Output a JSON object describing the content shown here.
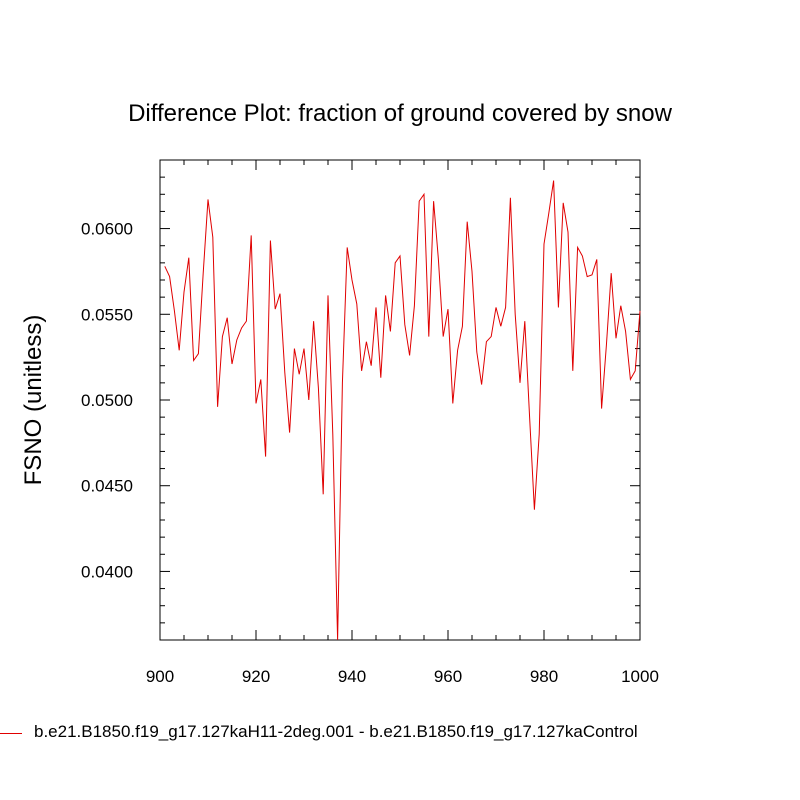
{
  "chart_data": {
    "type": "line",
    "title": "Difference Plot: fraction of ground covered by snow",
    "xlabel": "",
    "ylabel": "FSNO  (unitless)",
    "xlim": [
      900,
      1000
    ],
    "ylim": [
      0.036,
      0.064
    ],
    "xticks": [
      "900",
      "920",
      "940",
      "960",
      "980",
      "1000"
    ],
    "yticks": [
      "0.0400",
      "0.0450",
      "0.0500",
      "0.0550",
      "0.0600"
    ],
    "grid": false,
    "legend_placement": "bottom",
    "series": [
      {
        "name": "b.e21.B1850.f19_g17.127kaH11-2deg.001 - b.e21.B1850.f19_g17.127kaControl",
        "color": "#e00000",
        "x": [
          901,
          902,
          903,
          904,
          905,
          906,
          907,
          908,
          909,
          910,
          911,
          912,
          913,
          914,
          915,
          916,
          917,
          918,
          919,
          920,
          921,
          922,
          923,
          924,
          925,
          926,
          927,
          928,
          929,
          930,
          931,
          932,
          933,
          934,
          935,
          936,
          937,
          938,
          939,
          940,
          941,
          942,
          943,
          944,
          945,
          946,
          947,
          948,
          949,
          950,
          951,
          952,
          953,
          954,
          955,
          956,
          957,
          958,
          959,
          960,
          961,
          962,
          963,
          964,
          965,
          966,
          967,
          968,
          969,
          970,
          971,
          972,
          973,
          974,
          975,
          976,
          977,
          978,
          979,
          980,
          981,
          982,
          983,
          984,
          985,
          986,
          987,
          988,
          989,
          990,
          991,
          992,
          993,
          994,
          995,
          996,
          997,
          998,
          999,
          1000
        ],
        "values": [
          0.0578,
          0.0572,
          0.0552,
          0.0529,
          0.0563,
          0.0583,
          0.0523,
          0.0527,
          0.0574,
          0.0617,
          0.0595,
          0.0496,
          0.0537,
          0.0548,
          0.0521,
          0.0535,
          0.0542,
          0.0546,
          0.0596,
          0.0498,
          0.0512,
          0.0467,
          0.0593,
          0.0553,
          0.0562,
          0.0516,
          0.0481,
          0.053,
          0.0515,
          0.053,
          0.05,
          0.0546,
          0.0507,
          0.0445,
          0.0561,
          0.048,
          0.036,
          0.051,
          0.0589,
          0.057,
          0.0556,
          0.0517,
          0.0534,
          0.052,
          0.0554,
          0.0513,
          0.0561,
          0.054,
          0.058,
          0.0584,
          0.0544,
          0.0526,
          0.0555,
          0.0616,
          0.062,
          0.0537,
          0.0616,
          0.0582,
          0.0537,
          0.0553,
          0.0498,
          0.0529,
          0.0543,
          0.0604,
          0.0575,
          0.0528,
          0.0509,
          0.0534,
          0.0537,
          0.0554,
          0.0543,
          0.0554,
          0.0618,
          0.055,
          0.051,
          0.0546,
          0.049,
          0.0436,
          0.048,
          0.0591,
          0.0609,
          0.0628,
          0.0554,
          0.0615,
          0.0598,
          0.0517,
          0.0589,
          0.0584,
          0.0572,
          0.0573,
          0.0582,
          0.0495,
          0.0532,
          0.0574,
          0.0536,
          0.0555,
          0.054,
          0.0512,
          0.0517,
          0.0552
        ]
      }
    ]
  }
}
